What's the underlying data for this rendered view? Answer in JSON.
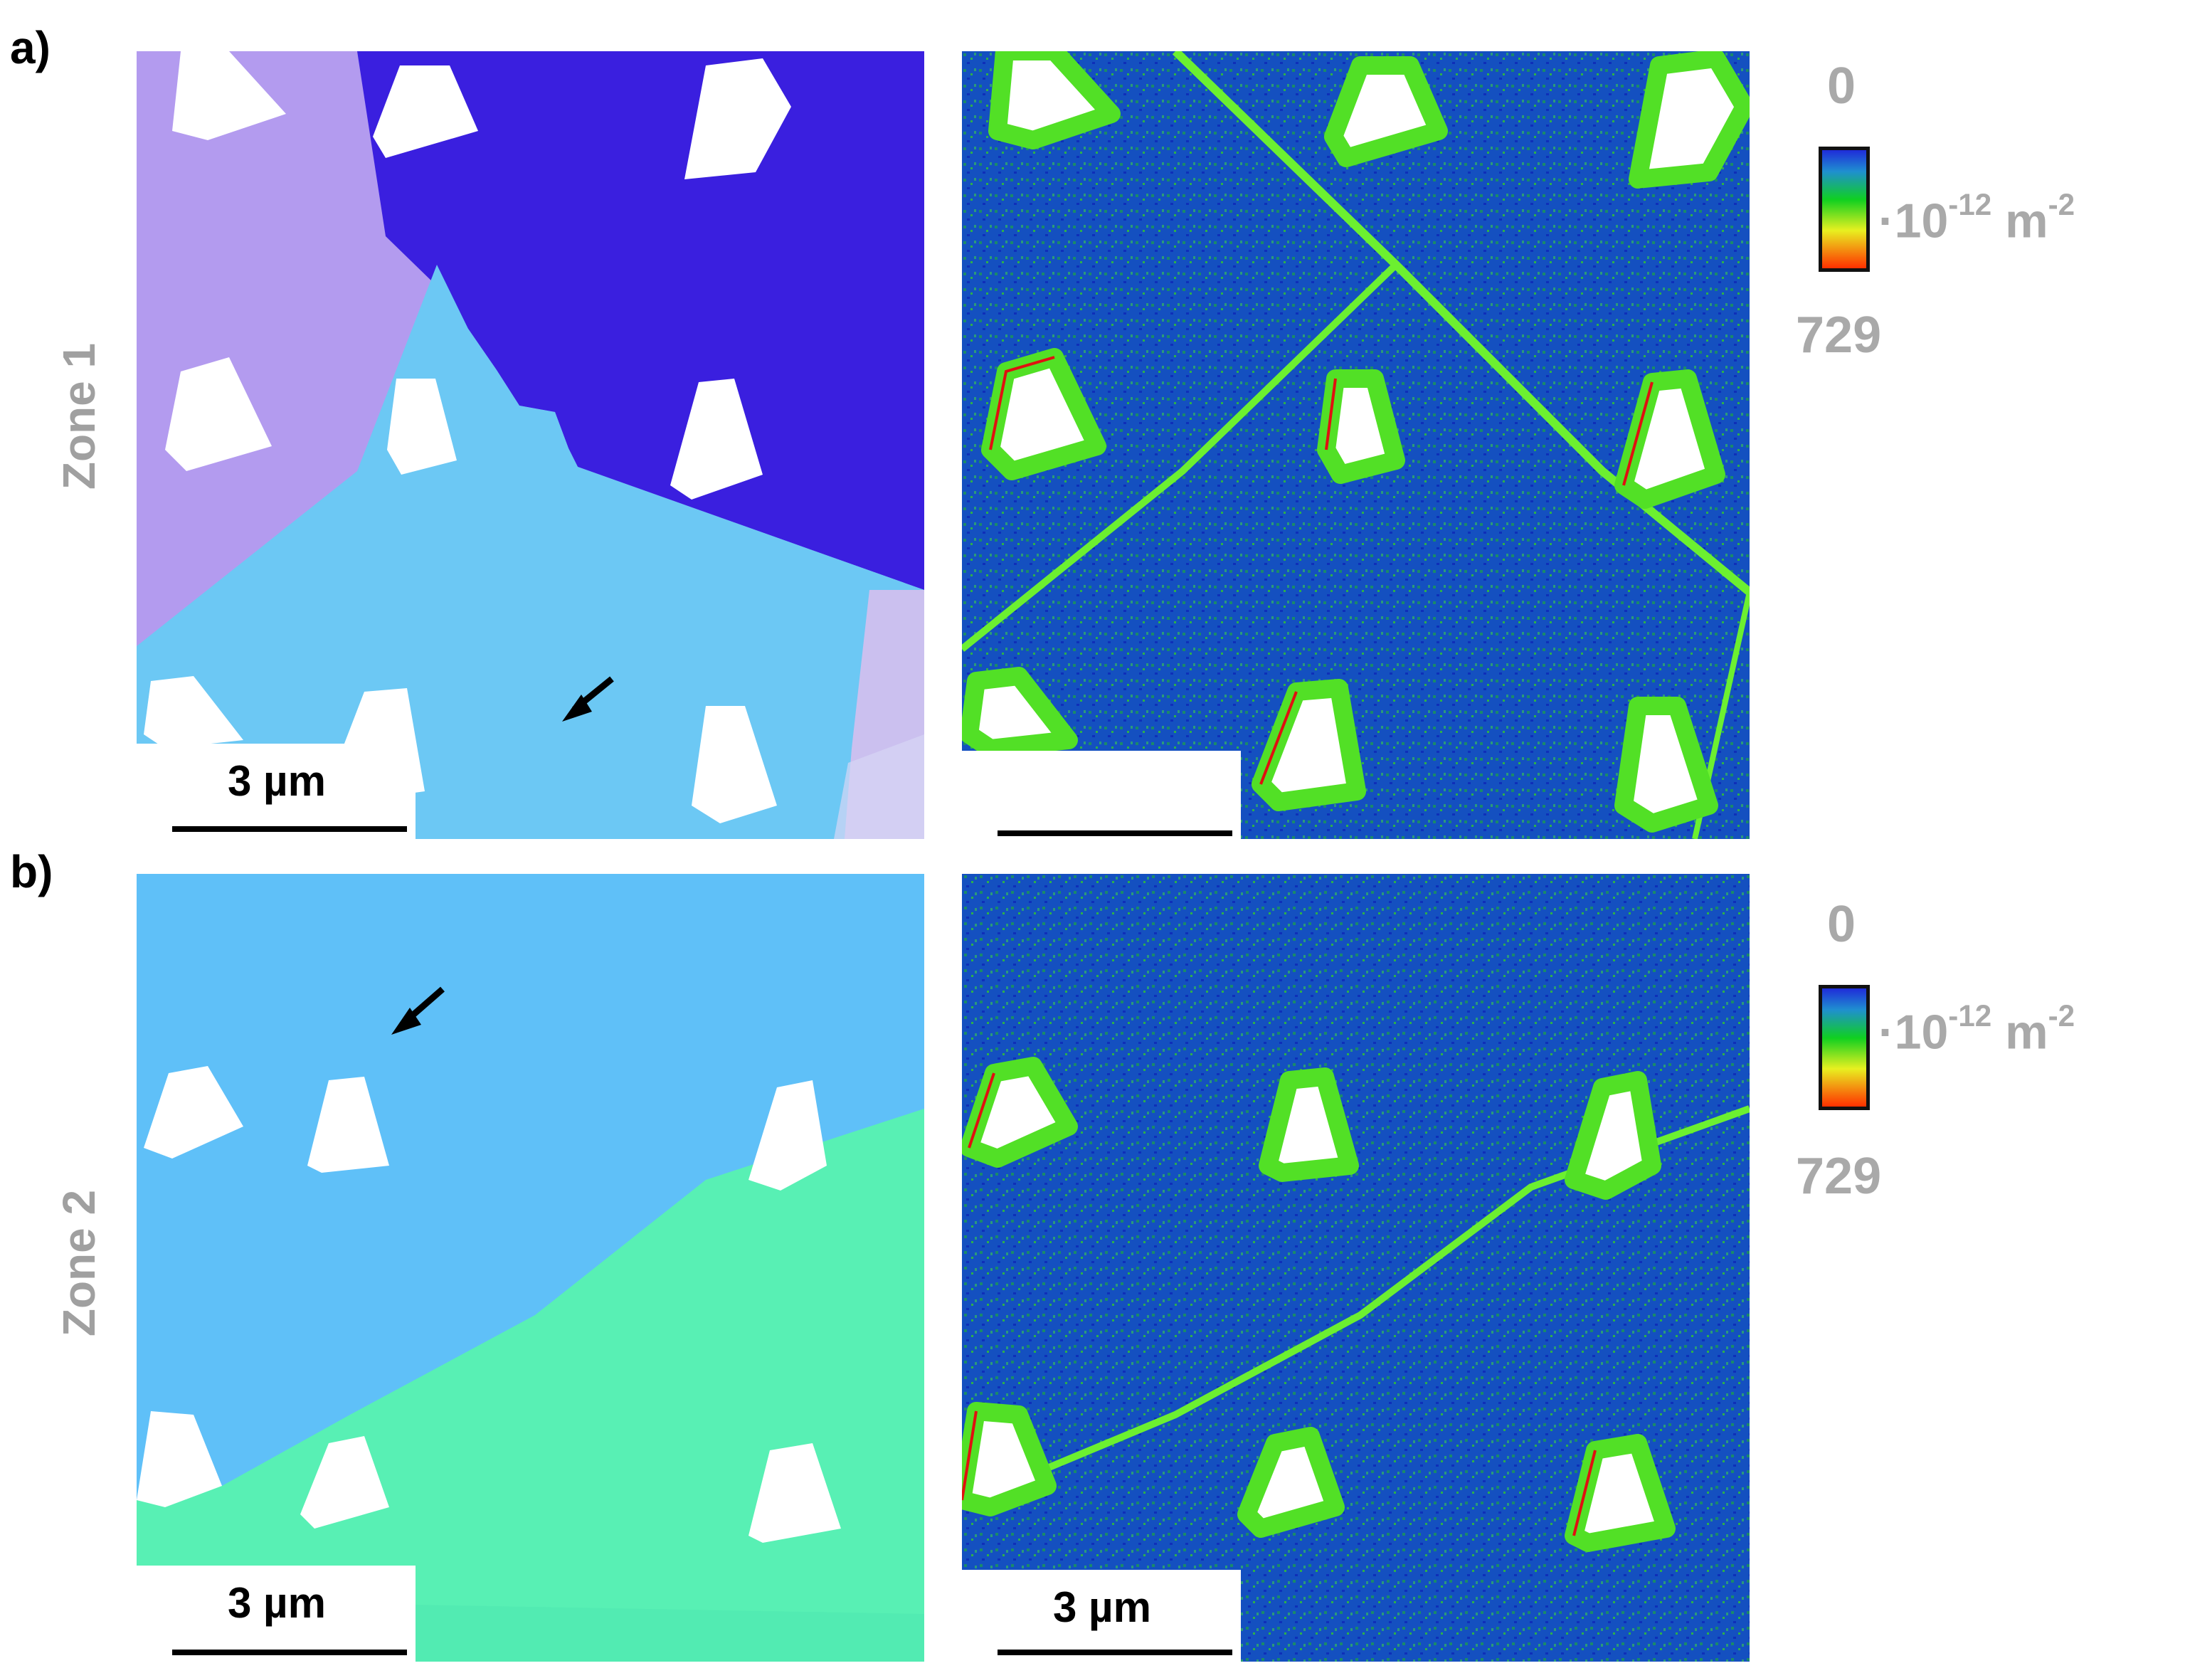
{
  "panels": [
    {
      "id": "a",
      "label": "a)",
      "zone": "Zone 1",
      "scalebar_label": "3 µm",
      "right_scalebar_label": ""
    },
    {
      "id": "b",
      "label": "b)",
      "zone": "Zone 2",
      "scalebar_label": "3 µm",
      "right_scalebar_label": "3 µm"
    }
  ],
  "colorbar": {
    "top": "0",
    "bottom": "729",
    "unit_prefix": "·10",
    "unit_exp": "-12",
    "unit_suffix": " m",
    "unit_exp2": "-2"
  },
  "colors": {
    "gnd_background": "#1346c8",
    "gnd_line": "#5ff02a",
    "label_gray": "#a0a0a0"
  }
}
